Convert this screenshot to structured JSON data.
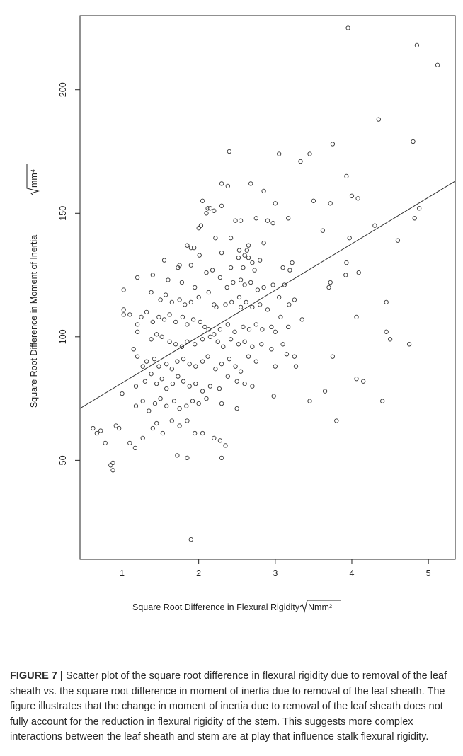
{
  "caption": {
    "label": "FIGURE 7 |",
    "text": "Scatter plot of the square root difference in flexural rigidity due to removal of the leaf sheath vs. the square root difference in moment of inertia due to removal of the leaf sheath. The figure illustrates that the change in moment of inertia due to removal of the leaf sheath does not fully account for the reduction in flexural rigidity of the stem. This suggests more complex interactions between the leaf sheath and stem are at play that influence stalk flexural rigidity."
  },
  "chart_data": {
    "type": "scatter",
    "title": "",
    "xlabel": "Square Root Difference in Flexural Rigidity",
    "xlabel_unit": "Nmm²",
    "ylabel": "Square Root Difference in Moment of Inertia",
    "ylabel_unit": "mm⁴",
    "xlim": [
      0.45,
      5.35
    ],
    "ylim": [
      10,
      230
    ],
    "x_ticks": [
      1,
      2,
      3,
      4,
      5
    ],
    "y_ticks": [
      50,
      100,
      150,
      200
    ],
    "grid": false,
    "legend": "none",
    "colors": {
      "points": "#333333",
      "line": "#333333",
      "axis": "#222222"
    },
    "regression_line": {
      "x": [
        0.45,
        5.35
      ],
      "y": [
        71,
        163
      ]
    },
    "points": [
      [
        3.95,
        225
      ],
      [
        4.85,
        218
      ],
      [
        5.12,
        210
      ],
      [
        4.35,
        188
      ],
      [
        4.8,
        179
      ],
      [
        3.75,
        178
      ],
      [
        2.4,
        175
      ],
      [
        3.05,
        174
      ],
      [
        3.45,
        174
      ],
      [
        3.33,
        171
      ],
      [
        3.93,
        165
      ],
      [
        2.3,
        162
      ],
      [
        2.38,
        161
      ],
      [
        2.68,
        162
      ],
      [
        2.85,
        159
      ],
      [
        3.5,
        155
      ],
      [
        2.05,
        155
      ],
      [
        2.12,
        152
      ],
      [
        2.2,
        151
      ],
      [
        2.3,
        153
      ],
      [
        2.1,
        150
      ],
      [
        2.15,
        152
      ],
      [
        3.72,
        154
      ],
      [
        4.0,
        157
      ],
      [
        4.08,
        156
      ],
      [
        4.88,
        152
      ],
      [
        4.82,
        148
      ],
      [
        3.62,
        143
      ],
      [
        2.48,
        147
      ],
      [
        2.55,
        147
      ],
      [
        2.75,
        148
      ],
      [
        2.9,
        147
      ],
      [
        2.97,
        146
      ],
      [
        3.17,
        148
      ],
      [
        4.3,
        145
      ],
      [
        2.03,
        145
      ],
      [
        2.0,
        144
      ],
      [
        4.6,
        139
      ],
      [
        3.97,
        140
      ],
      [
        3.0,
        154
      ],
      [
        1.85,
        137
      ],
      [
        1.9,
        136
      ],
      [
        1.94,
        136
      ],
      [
        2.22,
        140
      ],
      [
        2.42,
        140
      ],
      [
        2.65,
        137
      ],
      [
        2.63,
        135
      ],
      [
        2.6,
        133
      ],
      [
        2.53,
        135
      ],
      [
        2.85,
        138
      ],
      [
        2.3,
        134
      ],
      [
        2.52,
        132
      ],
      [
        2.65,
        132
      ],
      [
        2.8,
        131
      ],
      [
        3.22,
        130
      ],
      [
        3.1,
        128
      ],
      [
        3.19,
        127
      ],
      [
        1.55,
        131
      ],
      [
        1.75,
        129
      ],
      [
        1.73,
        128
      ],
      [
        1.9,
        129
      ],
      [
        2.01,
        133
      ],
      [
        2.42,
        128
      ],
      [
        2.58,
        128
      ],
      [
        2.7,
        130
      ],
      [
        2.73,
        127
      ],
      [
        4.09,
        126
      ],
      [
        3.93,
        130
      ],
      [
        3.92,
        125
      ],
      [
        1.2,
        124
      ],
      [
        1.4,
        125
      ],
      [
        1.6,
        123
      ],
      [
        1.78,
        122
      ],
      [
        1.95,
        120
      ],
      [
        2.1,
        126
      ],
      [
        2.18,
        127
      ],
      [
        2.28,
        124
      ],
      [
        2.37,
        120
      ],
      [
        2.45,
        122
      ],
      [
        2.55,
        123
      ],
      [
        2.6,
        121
      ],
      [
        2.68,
        122
      ],
      [
        2.77,
        119
      ],
      [
        2.85,
        120
      ],
      [
        2.97,
        121
      ],
      [
        3.12,
        121
      ],
      [
        3.72,
        122
      ],
      [
        3.7,
        120
      ],
      [
        1.02,
        119
      ],
      [
        1.1,
        109
      ],
      [
        1.02,
        111
      ],
      [
        1.02,
        109
      ],
      [
        1.38,
        118
      ],
      [
        1.5,
        115
      ],
      [
        1.57,
        117
      ],
      [
        1.65,
        114
      ],
      [
        1.75,
        115
      ],
      [
        1.82,
        113
      ],
      [
        1.9,
        114
      ],
      [
        2.0,
        116
      ],
      [
        2.13,
        118
      ],
      [
        2.2,
        113
      ],
      [
        2.23,
        112
      ],
      [
        2.35,
        113
      ],
      [
        2.43,
        114
      ],
      [
        2.53,
        116
      ],
      [
        2.55,
        112
      ],
      [
        2.62,
        114
      ],
      [
        2.7,
        112
      ],
      [
        2.8,
        113
      ],
      [
        2.9,
        111
      ],
      [
        3.05,
        116
      ],
      [
        3.25,
        115
      ],
      [
        3.18,
        113
      ],
      [
        4.45,
        114
      ],
      [
        1.25,
        108
      ],
      [
        1.2,
        105
      ],
      [
        1.2,
        102
      ],
      [
        1.32,
        110
      ],
      [
        1.4,
        106
      ],
      [
        1.48,
        108
      ],
      [
        1.55,
        107
      ],
      [
        1.62,
        109
      ],
      [
        1.7,
        106
      ],
      [
        1.79,
        108
      ],
      [
        1.85,
        105
      ],
      [
        1.93,
        107
      ],
      [
        2.02,
        106
      ],
      [
        2.08,
        104
      ],
      [
        2.13,
        103
      ],
      [
        2.2,
        101
      ],
      [
        2.28,
        103
      ],
      [
        2.38,
        105
      ],
      [
        2.47,
        102
      ],
      [
        2.58,
        104
      ],
      [
        2.66,
        103
      ],
      [
        2.75,
        105
      ],
      [
        2.83,
        103
      ],
      [
        2.95,
        104
      ],
      [
        3.0,
        102
      ],
      [
        3.07,
        108
      ],
      [
        3.35,
        107
      ],
      [
        3.17,
        104
      ],
      [
        4.06,
        108
      ],
      [
        1.38,
        99
      ],
      [
        1.45,
        101
      ],
      [
        1.52,
        100
      ],
      [
        1.62,
        98
      ],
      [
        1.7,
        97
      ],
      [
        1.78,
        96
      ],
      [
        1.85,
        98
      ],
      [
        1.95,
        97
      ],
      [
        2.05,
        99
      ],
      [
        2.15,
        100
      ],
      [
        2.25,
        98
      ],
      [
        2.32,
        96
      ],
      [
        2.42,
        99
      ],
      [
        2.52,
        97
      ],
      [
        2.6,
        98
      ],
      [
        2.7,
        96
      ],
      [
        2.82,
        97
      ],
      [
        2.95,
        95
      ],
      [
        3.1,
        97
      ],
      [
        3.15,
        93
      ],
      [
        3.25,
        92
      ],
      [
        4.45,
        102
      ],
      [
        4.5,
        99
      ],
      [
        4.75,
        97
      ],
      [
        1.15,
        95
      ],
      [
        1.2,
        92
      ],
      [
        1.27,
        88
      ],
      [
        1.32,
        90
      ],
      [
        1.42,
        91
      ],
      [
        1.48,
        88
      ],
      [
        1.58,
        89
      ],
      [
        1.65,
        87
      ],
      [
        1.72,
        90
      ],
      [
        1.8,
        91
      ],
      [
        1.88,
        89
      ],
      [
        1.96,
        88
      ],
      [
        2.05,
        90
      ],
      [
        2.12,
        92
      ],
      [
        2.22,
        87
      ],
      [
        2.3,
        89
      ],
      [
        2.4,
        91
      ],
      [
        2.48,
        88
      ],
      [
        2.55,
        86
      ],
      [
        2.65,
        92
      ],
      [
        2.75,
        90
      ],
      [
        3.0,
        88
      ],
      [
        3.27,
        88
      ],
      [
        3.75,
        92
      ],
      [
        1.0,
        77
      ],
      [
        1.18,
        80
      ],
      [
        1.3,
        82
      ],
      [
        1.38,
        85
      ],
      [
        1.45,
        81
      ],
      [
        1.52,
        83
      ],
      [
        1.58,
        79
      ],
      [
        1.66,
        81
      ],
      [
        1.73,
        84
      ],
      [
        1.8,
        82
      ],
      [
        1.88,
        80
      ],
      [
        1.96,
        81
      ],
      [
        2.05,
        78
      ],
      [
        2.15,
        80
      ],
      [
        2.27,
        79
      ],
      [
        2.38,
        84
      ],
      [
        2.5,
        82
      ],
      [
        2.6,
        81
      ],
      [
        2.7,
        80
      ],
      [
        2.98,
        76
      ],
      [
        4.06,
        83
      ],
      [
        4.15,
        82
      ],
      [
        4.4,
        74
      ],
      [
        1.18,
        72
      ],
      [
        1.27,
        74
      ],
      [
        1.35,
        70
      ],
      [
        1.43,
        73
      ],
      [
        1.5,
        75
      ],
      [
        1.58,
        72
      ],
      [
        1.68,
        74
      ],
      [
        1.75,
        71
      ],
      [
        1.84,
        72
      ],
      [
        1.92,
        74
      ],
      [
        2.0,
        73
      ],
      [
        2.1,
        75
      ],
      [
        2.3,
        73
      ],
      [
        2.5,
        71
      ],
      [
        3.45,
        74
      ],
      [
        3.65,
        78
      ],
      [
        3.8,
        66
      ],
      [
        0.62,
        63
      ],
      [
        0.67,
        61
      ],
      [
        0.72,
        62
      ],
      [
        0.85,
        48
      ],
      [
        0.88,
        49
      ],
      [
        0.92,
        64
      ],
      [
        0.96,
        63
      ],
      [
        1.1,
        57
      ],
      [
        1.17,
        55
      ],
      [
        1.27,
        59
      ],
      [
        1.4,
        63
      ],
      [
        1.45,
        65
      ],
      [
        1.53,
        61
      ],
      [
        1.65,
        66
      ],
      [
        1.75,
        64
      ],
      [
        1.85,
        66
      ],
      [
        1.95,
        61
      ],
      [
        2.05,
        61
      ],
      [
        2.2,
        59
      ],
      [
        2.28,
        58
      ],
      [
        2.35,
        56
      ],
      [
        1.72,
        52
      ],
      [
        1.85,
        51
      ],
      [
        2.3,
        51
      ],
      [
        0.88,
        46
      ],
      [
        0.78,
        57
      ],
      [
        1.9,
        18
      ]
    ]
  }
}
